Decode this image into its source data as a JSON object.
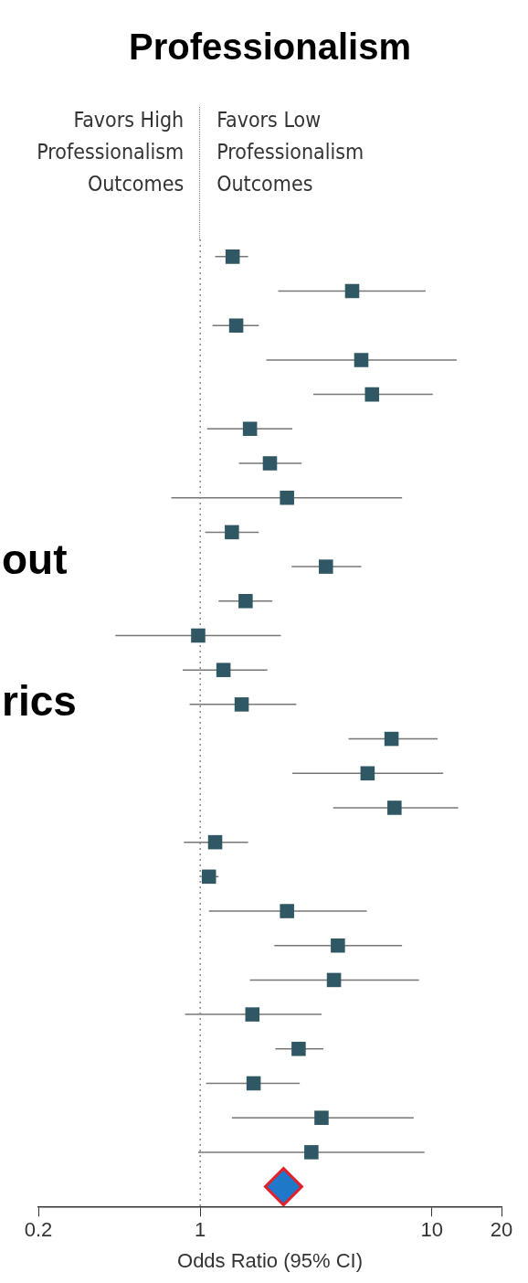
{
  "chart_data": {
    "type": "scatter",
    "title": "Professionalism",
    "xlabel": "Odds Ratio (95% CI)",
    "orientation": "horizontal",
    "log": "x",
    "xlim": [
      0.2,
      20
    ],
    "xticks": [
      0.2,
      1,
      10,
      20
    ],
    "grid": false,
    "legend": false,
    "marker": "square",
    "categories": [
      null,
      null,
      null,
      null,
      null,
      null,
      null,
      null,
      null,
      null,
      null,
      null,
      null,
      null,
      null,
      null,
      null,
      null,
      null,
      null,
      null,
      null,
      null,
      null,
      null,
      null,
      null,
      null
    ],
    "ref_lines": [
      {
        "axis": "x",
        "value": 1,
        "line_style": "dotted",
        "color": "#888888"
      }
    ],
    "annotations": [
      "Favors High Professionalism Outcomes",
      "Favors Low Professionalism Outcomes",
      "out",
      "rics"
    ],
    "series": [
      {
        "color": "#2f5864",
        "values": [
          1.38,
          4.53,
          1.43,
          4.96,
          5.52,
          1.64,
          2.0,
          2.37,
          1.37,
          3.49,
          1.57,
          0.98,
          1.26,
          1.51,
          6.7,
          5.28,
          6.9,
          1.16,
          1.09,
          2.37,
          3.93,
          3.78,
          1.68,
          2.66,
          1.7,
          3.34,
          3.02,
          null
        ],
        "errors": [
          [
            1.16,
            1.61
          ],
          [
            2.17,
            9.4
          ],
          [
            1.13,
            1.79
          ],
          [
            1.93,
            12.8
          ],
          [
            3.08,
            10.1
          ],
          [
            1.07,
            2.5
          ],
          [
            1.47,
            2.74
          ],
          [
            0.75,
            7.44
          ],
          [
            1.05,
            1.79
          ],
          [
            2.48,
            4.96
          ],
          [
            1.2,
            2.05
          ],
          [
            0.43,
            2.23
          ],
          [
            0.84,
            1.95
          ],
          [
            0.9,
            2.6
          ],
          [
            4.37,
            10.6
          ],
          [
            2.5,
            11.2
          ],
          [
            3.75,
            13
          ],
          [
            0.85,
            1.61
          ],
          [
            1.01,
            1.2
          ],
          [
            1.09,
            5.24
          ],
          [
            2.09,
            7.44
          ],
          [
            1.64,
            8.8
          ],
          [
            0.86,
            3.34
          ],
          [
            2.11,
            3.4
          ],
          [
            1.06,
            2.69
          ],
          [
            1.37,
            8.35
          ],
          [
            0.98,
            9.3
          ],
          null
        ]
      },
      {
        "color": "#1f78c8",
        "marker": "diamond",
        "values": [
          null,
          null,
          null,
          null,
          null,
          null,
          null,
          null,
          null,
          null,
          null,
          null,
          null,
          null,
          null,
          null,
          null,
          null,
          null,
          null,
          null,
          null,
          null,
          null,
          null,
          null,
          null,
          2.29
        ]
      }
    ]
  }
}
